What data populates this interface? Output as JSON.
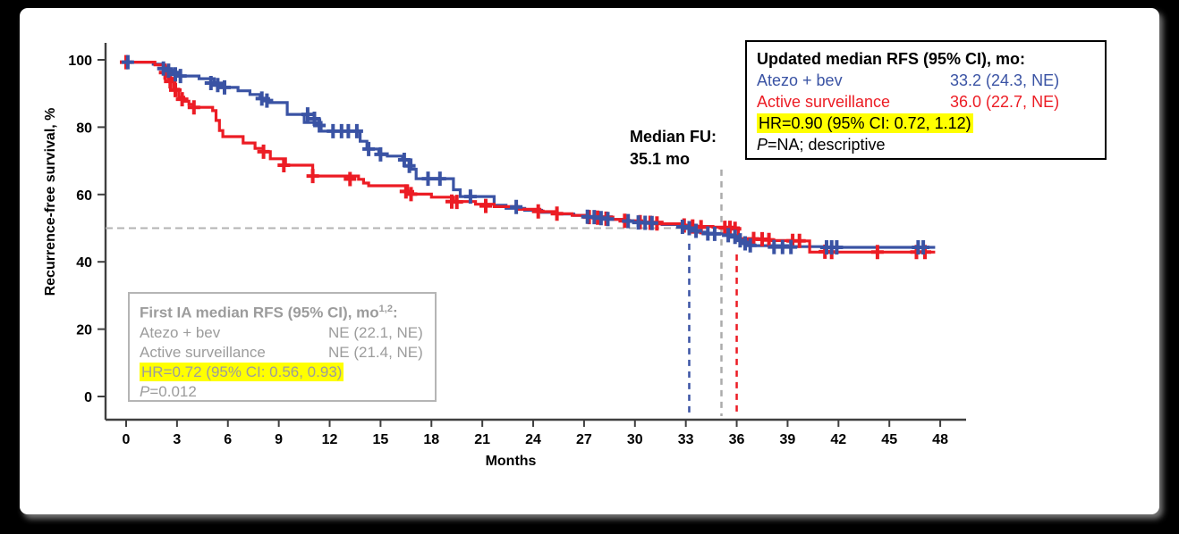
{
  "figure": {
    "background_color": "#000000",
    "panel_color": "#ffffff"
  },
  "chart_data": {
    "type": "line",
    "subtype": "kaplan-meier-step",
    "x_axis": {
      "label": "Months",
      "min": 0,
      "max": 48,
      "ticks": [
        0,
        3,
        6,
        9,
        12,
        15,
        18,
        21,
        24,
        27,
        30,
        33,
        36,
        39,
        42,
        45,
        48
      ]
    },
    "y_axis": {
      "label": "Recurrence-free survival, %",
      "min": 0,
      "max": 100,
      "ticks": [
        0,
        20,
        40,
        60,
        80,
        100
      ]
    },
    "axis_color": "#3f3f3f",
    "grid": false,
    "series": [
      {
        "name": "Atezo + bev",
        "color": "#3A53A4",
        "steps": [
          [
            0,
            99.3
          ],
          [
            1.6,
            98.7
          ],
          [
            2.2,
            97.4
          ],
          [
            2.7,
            96.3
          ],
          [
            3.1,
            95.2
          ],
          [
            4.3,
            94.4
          ],
          [
            5.2,
            93.1
          ],
          [
            5.8,
            91.8
          ],
          [
            6.6,
            90.8
          ],
          [
            7.3,
            89.7
          ],
          [
            7.9,
            88.5
          ],
          [
            8.4,
            87.3
          ],
          [
            9.5,
            83.8
          ],
          [
            10.5,
            81.4
          ],
          [
            11.5,
            78.8
          ],
          [
            13.8,
            75.8
          ],
          [
            14.2,
            73.5
          ],
          [
            14.9,
            72.1
          ],
          [
            15.4,
            71.4
          ],
          [
            16.3,
            70.3
          ],
          [
            16.8,
            67.5
          ],
          [
            17.1,
            64.7
          ],
          [
            19.3,
            61.4
          ],
          [
            19.7,
            59.4
          ],
          [
            21.7,
            56.8
          ],
          [
            22.4,
            55.9
          ],
          [
            23.5,
            55.3
          ],
          [
            24.5,
            54.7
          ],
          [
            25.4,
            54.2
          ],
          [
            26.4,
            53.8
          ],
          [
            27.1,
            53.4
          ],
          [
            28.6,
            52.6
          ],
          [
            29.6,
            52.1
          ],
          [
            30.3,
            51.7
          ],
          [
            31.6,
            51.1
          ],
          [
            32.6,
            50.5
          ],
          [
            33.2,
            50.0
          ],
          [
            33.5,
            48.8
          ],
          [
            34.3,
            48.3
          ],
          [
            35.6,
            47.8
          ],
          [
            36.2,
            46.2
          ],
          [
            36.8,
            44.8
          ],
          [
            39.0,
            44.5
          ],
          [
            41.0,
            44.3
          ],
          [
            47.7,
            44.3
          ]
        ],
        "censors": [
          [
            0.1,
            99.3
          ],
          [
            2.2,
            97.4
          ],
          [
            2.5,
            96.8
          ],
          [
            2.9,
            95.7
          ],
          [
            3.2,
            95.2
          ],
          [
            5.0,
            93.1
          ],
          [
            5.4,
            92.5
          ],
          [
            5.8,
            91.8
          ],
          [
            8.0,
            88.5
          ],
          [
            8.3,
            87.9
          ],
          [
            10.7,
            83.8
          ],
          [
            11.1,
            82.5
          ],
          [
            11.4,
            80.5
          ],
          [
            12.2,
            78.8
          ],
          [
            12.7,
            78.8
          ],
          [
            13.1,
            78.8
          ],
          [
            13.6,
            78.8
          ],
          [
            14.3,
            73.5
          ],
          [
            15.0,
            71.9
          ],
          [
            16.4,
            70.3
          ],
          [
            16.7,
            68.5
          ],
          [
            17.8,
            64.7
          ],
          [
            18.5,
            64.7
          ],
          [
            20.3,
            59.4
          ],
          [
            23.0,
            56.3
          ],
          [
            27.2,
            53.4
          ],
          [
            27.6,
            53.3
          ],
          [
            28.0,
            53.0
          ],
          [
            28.4,
            52.7
          ],
          [
            29.6,
            52.1
          ],
          [
            30.2,
            51.7
          ],
          [
            30.6,
            51.6
          ],
          [
            31.0,
            51.5
          ],
          [
            32.8,
            50.4
          ],
          [
            33.2,
            50.0
          ],
          [
            33.6,
            49.2
          ],
          [
            34.3,
            48.4
          ],
          [
            34.7,
            48.3
          ],
          [
            35.5,
            47.9
          ],
          [
            35.9,
            47.4
          ],
          [
            36.2,
            46.4
          ],
          [
            36.5,
            45.5
          ],
          [
            36.8,
            44.9
          ],
          [
            38.2,
            44.4
          ],
          [
            38.7,
            44.4
          ],
          [
            39.2,
            44.4
          ],
          [
            41.3,
            44.3
          ],
          [
            41.6,
            44.3
          ],
          [
            41.9,
            44.3
          ],
          [
            46.7,
            44.3
          ],
          [
            47.0,
            44.3
          ]
        ]
      },
      {
        "name": "Active surveillance",
        "color": "#EC1C24",
        "steps": [
          [
            0,
            99.3
          ],
          [
            1.7,
            98.5
          ],
          [
            2.3,
            96.5
          ],
          [
            2.5,
            94.5
          ],
          [
            2.8,
            91.3
          ],
          [
            3.1,
            88.9
          ],
          [
            3.4,
            87.7
          ],
          [
            3.7,
            86.8
          ],
          [
            4.0,
            85.9
          ],
          [
            5.1,
            84.9
          ],
          [
            5.3,
            82.0
          ],
          [
            5.5,
            79.0
          ],
          [
            5.7,
            77.2
          ],
          [
            6.9,
            75.3
          ],
          [
            7.6,
            73.7
          ],
          [
            8.1,
            72.7
          ],
          [
            8.5,
            70.6
          ],
          [
            9.4,
            68.7
          ],
          [
            11.0,
            65.5
          ],
          [
            13.7,
            64.5
          ],
          [
            14.0,
            63.4
          ],
          [
            14.3,
            62.6
          ],
          [
            16.6,
            60.9
          ],
          [
            16.9,
            60.1
          ],
          [
            18.0,
            59.2
          ],
          [
            19.3,
            57.9
          ],
          [
            20.6,
            57.1
          ],
          [
            21.7,
            56.4
          ],
          [
            23.1,
            55.6
          ],
          [
            24.4,
            54.9
          ],
          [
            25.3,
            54.3
          ],
          [
            26.3,
            53.8
          ],
          [
            27.3,
            53.3
          ],
          [
            28.7,
            52.6
          ],
          [
            29.5,
            52.2
          ],
          [
            30.4,
            51.8
          ],
          [
            31.6,
            51.3
          ],
          [
            32.8,
            50.8
          ],
          [
            33.6,
            50.5
          ],
          [
            34.6,
            50.3
          ],
          [
            35.9,
            50.1
          ],
          [
            36.1,
            46.9
          ],
          [
            37.2,
            46.6
          ],
          [
            38.1,
            46.3
          ],
          [
            39.2,
            46.2
          ],
          [
            40.3,
            42.9
          ],
          [
            47.7,
            42.9
          ]
        ],
        "censors": [
          [
            0.0,
            99.3
          ],
          [
            2.3,
            96.2
          ],
          [
            2.6,
            93.6
          ],
          [
            2.9,
            91.0
          ],
          [
            3.3,
            88.3
          ],
          [
            4.0,
            85.9
          ],
          [
            8.1,
            72.7
          ],
          [
            9.3,
            68.7
          ],
          [
            11.0,
            65.5
          ],
          [
            13.2,
            64.6
          ],
          [
            16.5,
            60.9
          ],
          [
            16.8,
            60.1
          ],
          [
            19.2,
            57.9
          ],
          [
            19.5,
            57.8
          ],
          [
            21.2,
            56.6
          ],
          [
            24.3,
            55.0
          ],
          [
            25.4,
            54.3
          ],
          [
            27.3,
            53.3
          ],
          [
            27.8,
            53.1
          ],
          [
            28.3,
            52.8
          ],
          [
            29.4,
            52.2
          ],
          [
            30.3,
            51.8
          ],
          [
            30.9,
            51.6
          ],
          [
            31.3,
            51.4
          ],
          [
            32.9,
            50.8
          ],
          [
            33.4,
            50.5
          ],
          [
            33.9,
            50.3
          ],
          [
            35.3,
            50.1
          ],
          [
            35.6,
            50.1
          ],
          [
            35.9,
            49.8
          ],
          [
            37.0,
            46.8
          ],
          [
            37.5,
            46.7
          ],
          [
            37.9,
            46.5
          ],
          [
            39.3,
            46.2
          ],
          [
            39.7,
            46.2
          ],
          [
            41.2,
            43.0
          ],
          [
            41.6,
            42.9
          ],
          [
            44.3,
            42.9
          ],
          [
            46.6,
            42.9
          ],
          [
            47.1,
            42.9
          ]
        ]
      }
    ],
    "reference_lines": {
      "horizontal_50pct": {
        "pct": 50,
        "from_month": 0,
        "to_month": 32.7,
        "color": "#b3b3b3"
      },
      "verticals": [
        {
          "name": "atezo-median-line",
          "month": 33.2,
          "from_pct": 45.4,
          "color": "#3A53A4"
        },
        {
          "name": "median-fu-line",
          "month": 35.1,
          "from_pct": 67.4,
          "color": "#ababab"
        },
        {
          "name": "surveillance-median-line",
          "month": 36.0,
          "from_pct": 42.2,
          "color": "#EC1C24"
        }
      ]
    },
    "annotations": {
      "median_fu_line1": "Median FU:",
      "median_fu_line2": "35.1 mo"
    }
  },
  "updated_box": {
    "title": "Updated median RFS (95% CI), mo:",
    "rows": [
      {
        "label": "Atezo + bev",
        "value": "33.2 (24.3, NE)",
        "color": "#3A53A4"
      },
      {
        "label": "Active surveillance",
        "value": "36.0 (22.7, NE)",
        "color": "#EC1C24"
      }
    ],
    "hr_line": "HR=0.90 (95% CI: 0.72, 1.12)",
    "p_italic": "P",
    "p_rest": "=NA; descriptive",
    "highlight_color": "#FFFF00",
    "text_color": "#000000"
  },
  "first_ia_box": {
    "title_pre": "First IA median RFS (95% CI), mo",
    "title_sup": "1,2",
    "title_post": ":",
    "rows": [
      {
        "label": "Atezo + bev",
        "value": "NE (22.1, NE)"
      },
      {
        "label": "Active surveillance",
        "value": "NE (21.4, NE)"
      }
    ],
    "hr_line": "HR=0.72 (95% CI: 0.56, 0.93)",
    "p_italic": "P",
    "p_rest": "=0.012",
    "highlight_color": "#FFFF00",
    "text_color": "#9c9c9c"
  }
}
